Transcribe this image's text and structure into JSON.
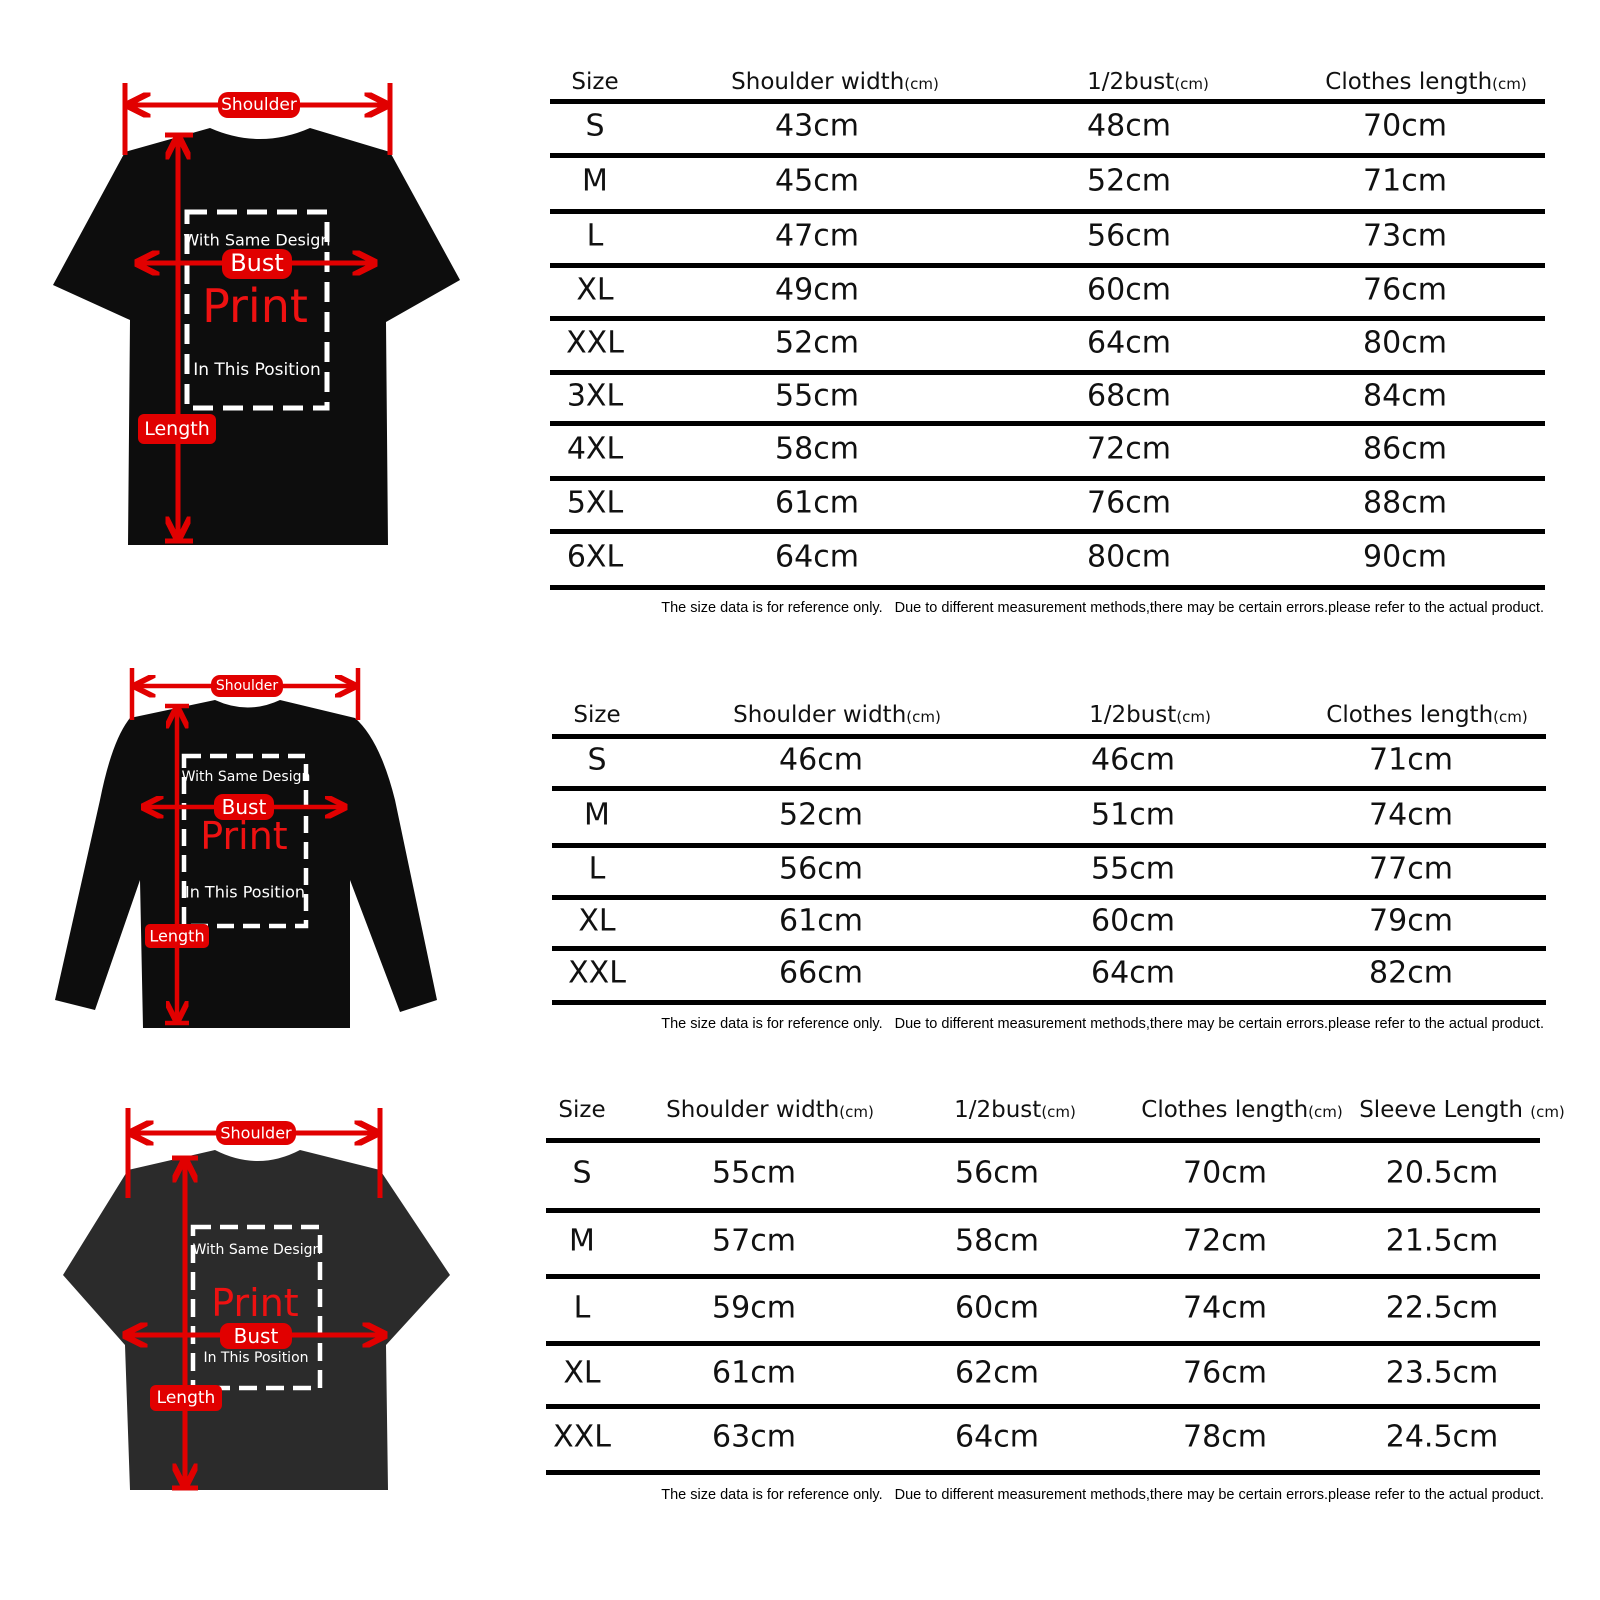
{
  "colors": {
    "accent_red": "#e10000",
    "shirt_black": "#0d0d0d",
    "shirt_washed": "#2b2b2b",
    "rule": "#000000"
  },
  "diagram_labels": {
    "shoulder": "Shoulder",
    "bust": "Bust",
    "length": "Length",
    "print_top": "With Same Design",
    "print": "Print",
    "print_bottom": "In This Position"
  },
  "note": {
    "part1": "The size data is for reference only.",
    "part2": "Due to different measurement methods,there may be certain errors.please refer to the actual product."
  },
  "tables": [
    {
      "garment": "short-sleeve t-shirt",
      "headers": [
        {
          "label": "Size",
          "unit": ""
        },
        {
          "label": "Shoulder width",
          "unit": "(cm)"
        },
        {
          "label": "1/2bust",
          "unit": "(cm)"
        },
        {
          "label": "Clothes length",
          "unit": "(cm)"
        }
      ],
      "rows": [
        [
          "S",
          "43cm",
          "48cm",
          "70cm"
        ],
        [
          "M",
          "45cm",
          "52cm",
          "71cm"
        ],
        [
          "L",
          "47cm",
          "56cm",
          "73cm"
        ],
        [
          "XL",
          "49cm",
          "60cm",
          "76cm"
        ],
        [
          "XXL",
          "52cm",
          "64cm",
          "80cm"
        ],
        [
          "3XL",
          "55cm",
          "68cm",
          "84cm"
        ],
        [
          "4XL",
          "58cm",
          "72cm",
          "86cm"
        ],
        [
          "5XL",
          "61cm",
          "76cm",
          "88cm"
        ],
        [
          "6XL",
          "64cm",
          "80cm",
          "90cm"
        ]
      ]
    },
    {
      "garment": "long-sleeve t-shirt",
      "headers": [
        {
          "label": "Size",
          "unit": ""
        },
        {
          "label": "Shoulder width",
          "unit": "(cm)"
        },
        {
          "label": "1/2bust",
          "unit": "(cm)"
        },
        {
          "label": "Clothes length",
          "unit": "(cm)"
        }
      ],
      "rows": [
        [
          "S",
          "46cm",
          "46cm",
          "71cm"
        ],
        [
          "M",
          "52cm",
          "51cm",
          "74cm"
        ],
        [
          "L",
          "56cm",
          "55cm",
          "77cm"
        ],
        [
          "XL",
          "61cm",
          "60cm",
          "79cm"
        ],
        [
          "XXL",
          "66cm",
          "64cm",
          "82cm"
        ]
      ]
    },
    {
      "garment": "washed oversized t-shirt",
      "headers": [
        {
          "label": "Size",
          "unit": ""
        },
        {
          "label": "Shoulder width",
          "unit": "(cm)"
        },
        {
          "label": "1/2bust",
          "unit": "(cm)"
        },
        {
          "label": "Clothes length",
          "unit": "(cm)"
        },
        {
          "label": "Sleeve Length ",
          "unit": "(cm)"
        }
      ],
      "rows": [
        [
          "S",
          "55cm",
          "56cm",
          "70cm",
          "20.5cm"
        ],
        [
          "M",
          "57cm",
          "58cm",
          "72cm",
          "21.5cm"
        ],
        [
          "L",
          "59cm",
          "60cm",
          "74cm",
          "22.5cm"
        ],
        [
          "XL",
          "61cm",
          "62cm",
          "76cm",
          "23.5cm"
        ],
        [
          "XXL",
          "63cm",
          "64cm",
          "78cm",
          "24.5cm"
        ]
      ]
    }
  ]
}
